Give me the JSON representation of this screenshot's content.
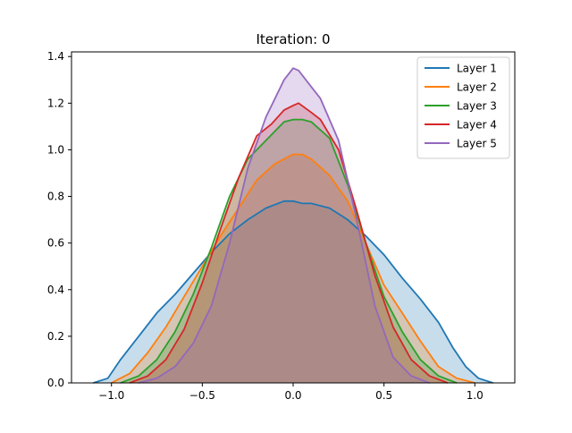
{
  "chart_data": {
    "type": "area",
    "title": "Iteration: 0",
    "xlabel": "",
    "ylabel": "",
    "xlim": [
      -1.22,
      1.22
    ],
    "ylim": [
      0,
      1.42
    ],
    "xticks": [
      -1.0,
      -0.5,
      0.0,
      0.5,
      1.0
    ],
    "xtick_labels": [
      "−1.0",
      "−0.5",
      "0.0",
      "0.5",
      "1.0"
    ],
    "yticks": [
      0.0,
      0.2,
      0.4,
      0.6,
      0.8,
      1.0,
      1.2,
      1.4
    ],
    "ytick_labels": [
      "0.0",
      "0.2",
      "0.4",
      "0.6",
      "0.8",
      "1.0",
      "1.2",
      "1.4"
    ],
    "grid": false,
    "legend_position": "top-right",
    "fill_opacity": 0.25,
    "series": [
      {
        "name": "Layer 1",
        "color": "#1f77b4",
        "points": [
          [
            -1.1,
            0.0
          ],
          [
            -1.02,
            0.02
          ],
          [
            -0.95,
            0.1
          ],
          [
            -0.85,
            0.2
          ],
          [
            -0.75,
            0.3
          ],
          [
            -0.65,
            0.38
          ],
          [
            -0.55,
            0.47
          ],
          [
            -0.45,
            0.56
          ],
          [
            -0.35,
            0.64
          ],
          [
            -0.25,
            0.7
          ],
          [
            -0.15,
            0.75
          ],
          [
            -0.05,
            0.78
          ],
          [
            0.0,
            0.78
          ],
          [
            0.05,
            0.77
          ],
          [
            0.1,
            0.77
          ],
          [
            0.2,
            0.75
          ],
          [
            0.3,
            0.7
          ],
          [
            0.4,
            0.63
          ],
          [
            0.5,
            0.55
          ],
          [
            0.6,
            0.45
          ],
          [
            0.7,
            0.36
          ],
          [
            0.8,
            0.26
          ],
          [
            0.88,
            0.15
          ],
          [
            0.95,
            0.07
          ],
          [
            1.02,
            0.02
          ],
          [
            1.1,
            0.0
          ]
        ]
      },
      {
        "name": "Layer 2",
        "color": "#ff7f0e",
        "points": [
          [
            -1.0,
            0.0
          ],
          [
            -0.9,
            0.04
          ],
          [
            -0.8,
            0.13
          ],
          [
            -0.7,
            0.24
          ],
          [
            -0.6,
            0.37
          ],
          [
            -0.5,
            0.5
          ],
          [
            -0.4,
            0.63
          ],
          [
            -0.3,
            0.75
          ],
          [
            -0.2,
            0.87
          ],
          [
            -0.1,
            0.94
          ],
          [
            0.0,
            0.98
          ],
          [
            0.05,
            0.98
          ],
          [
            0.1,
            0.96
          ],
          [
            0.2,
            0.89
          ],
          [
            0.3,
            0.78
          ],
          [
            0.4,
            0.6
          ],
          [
            0.5,
            0.42
          ],
          [
            0.6,
            0.3
          ],
          [
            0.7,
            0.18
          ],
          [
            0.8,
            0.07
          ],
          [
            0.9,
            0.02
          ],
          [
            1.0,
            0.0
          ]
        ]
      },
      {
        "name": "Layer 3",
        "color": "#2ca02c",
        "points": [
          [
            -0.95,
            0.0
          ],
          [
            -0.85,
            0.03
          ],
          [
            -0.75,
            0.1
          ],
          [
            -0.65,
            0.22
          ],
          [
            -0.55,
            0.38
          ],
          [
            -0.45,
            0.58
          ],
          [
            -0.35,
            0.8
          ],
          [
            -0.25,
            0.96
          ],
          [
            -0.15,
            1.04
          ],
          [
            -0.05,
            1.12
          ],
          [
            0.0,
            1.13
          ],
          [
            0.05,
            1.13
          ],
          [
            0.1,
            1.12
          ],
          [
            0.2,
            1.05
          ],
          [
            0.3,
            0.85
          ],
          [
            0.4,
            0.6
          ],
          [
            0.5,
            0.37
          ],
          [
            0.6,
            0.22
          ],
          [
            0.7,
            0.1
          ],
          [
            0.8,
            0.03
          ],
          [
            0.9,
            0.0
          ]
        ]
      },
      {
        "name": "Layer 4",
        "color": "#d62728",
        "points": [
          [
            -0.9,
            0.0
          ],
          [
            -0.8,
            0.03
          ],
          [
            -0.7,
            0.1
          ],
          [
            -0.6,
            0.23
          ],
          [
            -0.5,
            0.43
          ],
          [
            -0.4,
            0.66
          ],
          [
            -0.3,
            0.88
          ],
          [
            -0.2,
            1.06
          ],
          [
            -0.12,
            1.11
          ],
          [
            -0.05,
            1.17
          ],
          [
            0.0,
            1.19
          ],
          [
            0.03,
            1.2
          ],
          [
            0.1,
            1.16
          ],
          [
            0.15,
            1.13
          ],
          [
            0.25,
            1.0
          ],
          [
            0.35,
            0.74
          ],
          [
            0.45,
            0.46
          ],
          [
            0.55,
            0.24
          ],
          [
            0.65,
            0.1
          ],
          [
            0.75,
            0.03
          ],
          [
            0.85,
            0.0
          ]
        ]
      },
      {
        "name": "Layer 5",
        "color": "#9467bd",
        "points": [
          [
            -0.85,
            0.0
          ],
          [
            -0.75,
            0.02
          ],
          [
            -0.65,
            0.07
          ],
          [
            -0.55,
            0.17
          ],
          [
            -0.45,
            0.33
          ],
          [
            -0.35,
            0.6
          ],
          [
            -0.25,
            0.92
          ],
          [
            -0.15,
            1.14
          ],
          [
            -0.05,
            1.3
          ],
          [
            0.0,
            1.35
          ],
          [
            0.03,
            1.34
          ],
          [
            0.1,
            1.27
          ],
          [
            0.15,
            1.22
          ],
          [
            0.25,
            1.04
          ],
          [
            0.35,
            0.7
          ],
          [
            0.45,
            0.33
          ],
          [
            0.55,
            0.11
          ],
          [
            0.65,
            0.03
          ],
          [
            0.75,
            0.0
          ]
        ]
      }
    ]
  }
}
